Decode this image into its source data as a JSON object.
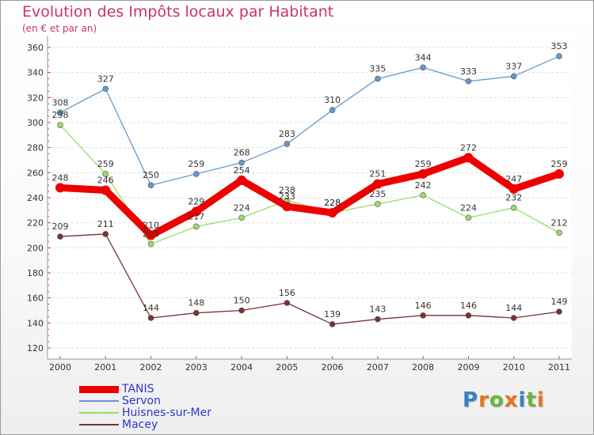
{
  "title": "Evolution des Impôts locaux par Habitant",
  "subtitle": "(en € et par an)",
  "logo": {
    "letters": [
      "P",
      "r",
      "o",
      "x",
      "i",
      "t",
      "i"
    ],
    "colors": [
      "#3b7fc4",
      "#e8731c",
      "#6ab43c",
      "#e8731c",
      "#3b7fc4",
      "#6ab43c",
      "#e8731c"
    ]
  },
  "chart_data": {
    "type": "line",
    "x": [
      2000,
      2001,
      2002,
      2003,
      2004,
      2005,
      2006,
      2007,
      2008,
      2009,
      2010,
      2011
    ],
    "ylim": [
      120,
      360
    ],
    "yticks": [
      120,
      140,
      160,
      180,
      200,
      220,
      240,
      260,
      280,
      300,
      320,
      340,
      360
    ],
    "grid": "horizontal",
    "legend_position": "bottom-left",
    "series": [
      {
        "name": "TANIS",
        "color": "#ee0000",
        "emphasis": true,
        "values": [
          248,
          246,
          210,
          229,
          254,
          233,
          228,
          251,
          259,
          272,
          247,
          259
        ]
      },
      {
        "name": "Servon",
        "color": "#6699cc",
        "emphasis": false,
        "values": [
          308,
          327,
          250,
          259,
          268,
          283,
          310,
          335,
          344,
          333,
          337,
          353
        ]
      },
      {
        "name": "Huisnes-sur-Mer",
        "color": "#99dd66",
        "emphasis": false,
        "values": [
          298,
          259,
          203,
          217,
          224,
          238,
          228,
          235,
          242,
          224,
          232,
          212
        ]
      },
      {
        "name": "Macey",
        "color": "#773333",
        "emphasis": false,
        "values": [
          209,
          211,
          144,
          148,
          150,
          156,
          139,
          143,
          146,
          146,
          144,
          149
        ]
      }
    ]
  }
}
